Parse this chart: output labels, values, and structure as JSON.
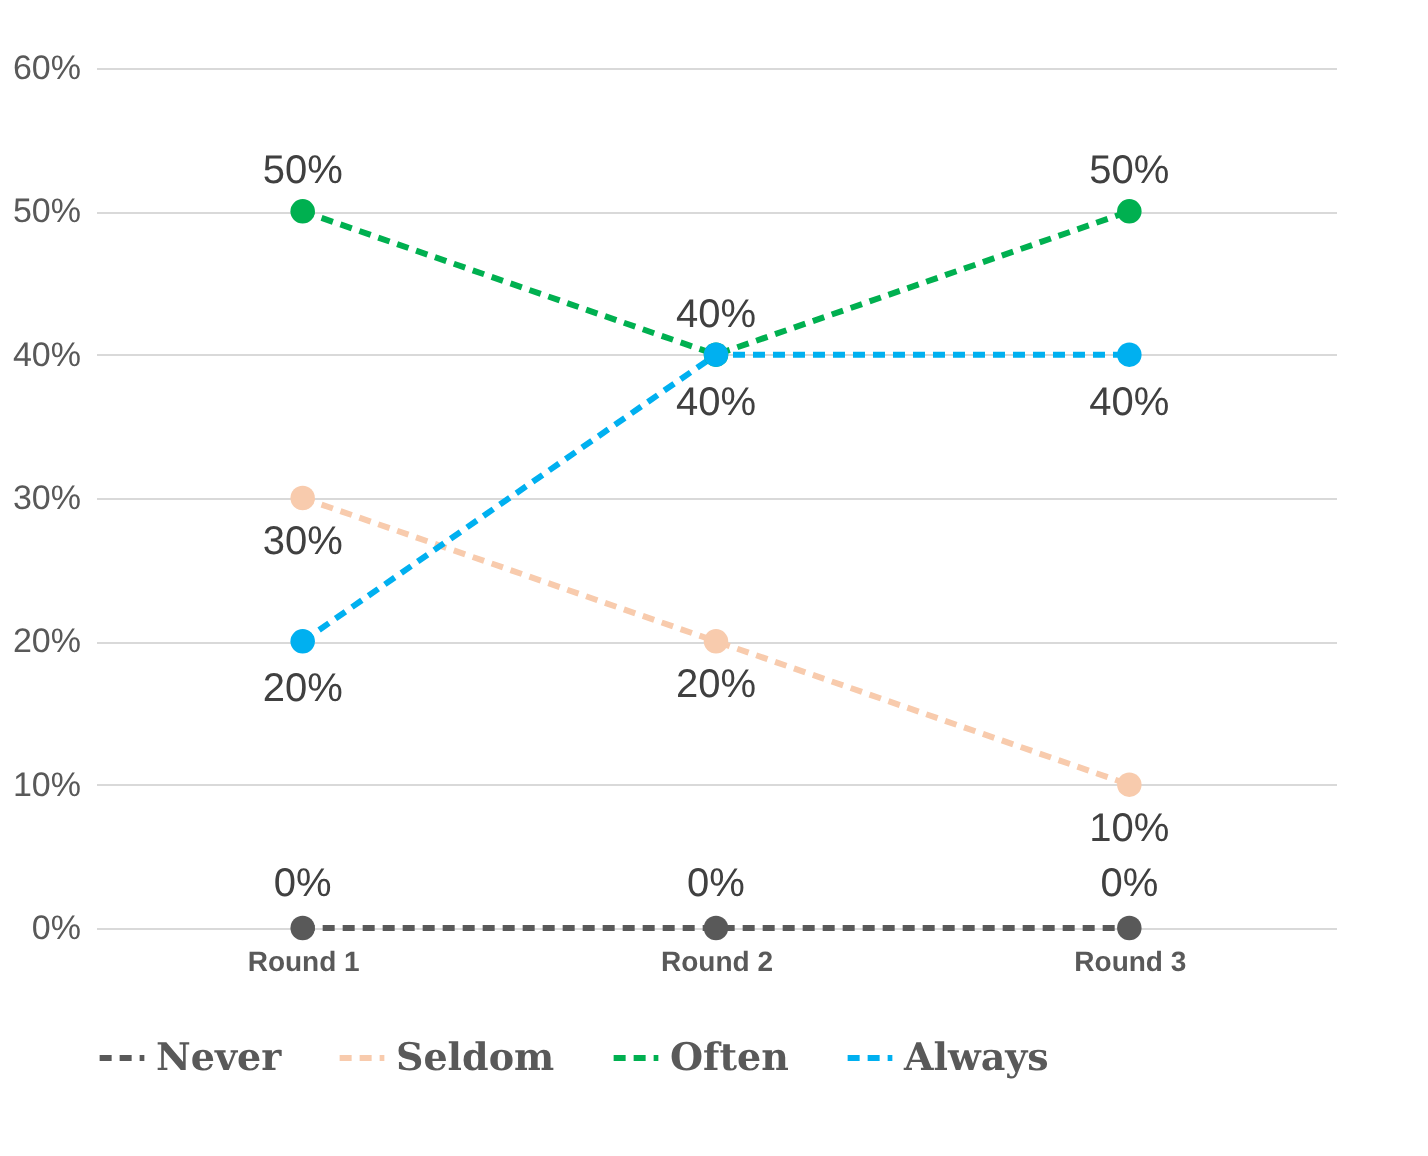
{
  "chart_data": {
    "type": "line",
    "categories": [
      "Round 1",
      "Round 2",
      "Round 3"
    ],
    "series": [
      {
        "name": "Never",
        "color": "#595959",
        "values": [
          0,
          0,
          0
        ],
        "value_labels": [
          "0%",
          "0%",
          "0%"
        ]
      },
      {
        "name": "Seldom",
        "color": "#f8cbad",
        "values": [
          30,
          20,
          10
        ],
        "value_labels": [
          "30%",
          "20%",
          "10%"
        ]
      },
      {
        "name": "Often",
        "color": "#00b050",
        "values": [
          50,
          40,
          50
        ],
        "value_labels": [
          "50%",
          "40%",
          "50%"
        ]
      },
      {
        "name": "Always",
        "color": "#00b0f0",
        "values": [
          20,
          40,
          40
        ],
        "value_labels": [
          "20%",
          "40%",
          "40%"
        ]
      }
    ],
    "ylim": [
      0,
      60
    ],
    "yticks": [
      {
        "value": 0,
        "label": "0%"
      },
      {
        "value": 10,
        "label": "10%"
      },
      {
        "value": 20,
        "label": "20%"
      },
      {
        "value": 30,
        "label": "30%"
      },
      {
        "value": 40,
        "label": "40%"
      },
      {
        "value": 50,
        "label": "50%"
      },
      {
        "value": 60,
        "label": "60%"
      }
    ],
    "grid": "y",
    "legend": "bottom",
    "marker": "circle",
    "line_style": "dashed"
  }
}
